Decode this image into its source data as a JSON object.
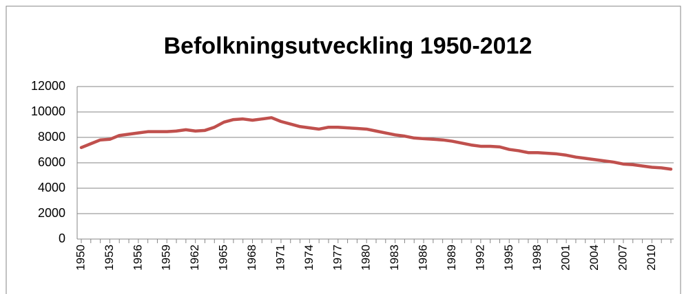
{
  "chart_data": {
    "type": "line",
    "title": "Befolkningsutveckling 1950-2012",
    "categories": [
      "1950",
      null,
      null,
      "1953",
      null,
      null,
      "1956",
      null,
      null,
      "1959",
      null,
      null,
      "1962",
      null,
      null,
      "1965",
      null,
      null,
      "1968",
      null,
      null,
      "1971",
      null,
      null,
      "1974",
      null,
      null,
      "1977",
      null,
      null,
      "1980",
      null,
      null,
      "1983",
      null,
      null,
      "1986",
      null,
      null,
      "1989",
      null,
      null,
      "1992",
      null,
      null,
      "1995",
      null,
      null,
      "1998",
      null,
      null,
      "2001",
      null,
      null,
      "2004",
      null,
      null,
      "2007",
      null,
      null,
      "2010",
      null,
      null
    ],
    "series": [
      {
        "color": "#c0504d",
        "values": [
          7200,
          7500,
          7800,
          7850,
          8150,
          8250,
          8350,
          8450,
          8450,
          8450,
          8500,
          8600,
          8500,
          8550,
          8800,
          9200,
          9400,
          9450,
          9350,
          9450,
          9550,
          9250,
          9050,
          8850,
          8750,
          8650,
          8800,
          8800,
          8750,
          8700,
          8650,
          8500,
          8350,
          8200,
          8100,
          7950,
          7900,
          7850,
          7800,
          7700,
          7550,
          7400,
          7300,
          7300,
          7250,
          7050,
          6950,
          6800,
          6800,
          6750,
          6700,
          6600,
          6450,
          6350,
          6250,
          6150,
          6050,
          5900,
          5850,
          5750,
          5650,
          5600,
          5500
        ]
      }
    ],
    "ylim": [
      0,
      12000
    ],
    "yticks": [
      0,
      2000,
      4000,
      6000,
      8000,
      10000,
      12000
    ],
    "grid": true
  }
}
